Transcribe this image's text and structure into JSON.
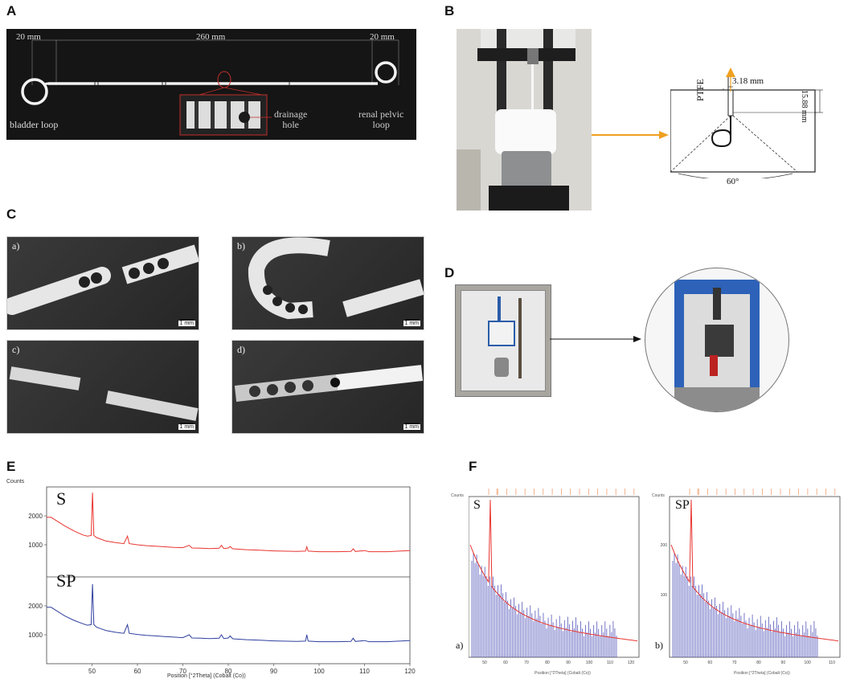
{
  "panels": {
    "a": "A",
    "b": "B",
    "c": "C",
    "d": "D",
    "e": "E",
    "f": "F"
  },
  "panel_a": {
    "dim_left": "20 mm",
    "dim_mid": "260 mm",
    "dim_right": "20 mm",
    "bladder_loop": "bladder loop",
    "drainage_hole_line1": "drainage",
    "drainage_hole_line2": "hole",
    "renal_line1": "renal pelvic",
    "renal_line2": "loop"
  },
  "panel_b": {
    "width_label": "3.18 mm",
    "height_label": "15.88 mm",
    "material": "PTFE",
    "angle": "60°"
  },
  "panel_c": {
    "labels": [
      "a)",
      "b)",
      "c)",
      "d)"
    ],
    "scale": "1 mm"
  },
  "chart_data": [
    {
      "type": "line",
      "ylabel": "Counts",
      "xlabel": "Position [°2Theta] (Cobalt (Co))",
      "x_ticks": [
        50,
        60,
        70,
        80,
        90,
        100,
        110,
        120
      ],
      "y_ticks": [
        1000,
        2000
      ],
      "xlim": [
        40,
        120
      ],
      "ylim": [
        0,
        3000
      ],
      "series": [
        {
          "name": "S",
          "color": "#e8342f",
          "points": [
            [
              40,
              1950
            ],
            [
              41,
              1950
            ],
            [
              42,
              1850
            ],
            [
              44,
              1650
            ],
            [
              46,
              1480
            ],
            [
              48,
              1340
            ],
            [
              49,
              1300
            ],
            [
              49.8,
              1320
            ],
            [
              50.1,
              2800
            ],
            [
              50.4,
              1320
            ],
            [
              51,
              1250
            ],
            [
              53,
              1130
            ],
            [
              55,
              1080
            ],
            [
              57,
              1040
            ],
            [
              57.8,
              1300
            ],
            [
              58.2,
              1040
            ],
            [
              60,
              1000
            ],
            [
              62,
              970
            ],
            [
              64,
              950
            ],
            [
              66,
              930
            ],
            [
              68,
              910
            ],
            [
              70,
              900
            ],
            [
              71.4,
              980
            ],
            [
              72,
              890
            ],
            [
              74,
              880
            ],
            [
              76,
              870
            ],
            [
              78,
              880
            ],
            [
              78.5,
              980
            ],
            [
              79,
              870
            ],
            [
              80,
              890
            ],
            [
              80.4,
              940
            ],
            [
              81,
              860
            ],
            [
              84,
              830
            ],
            [
              87,
              810
            ],
            [
              90,
              790
            ],
            [
              92,
              780
            ],
            [
              95,
              770
            ],
            [
              97,
              780
            ],
            [
              97.3,
              930
            ],
            [
              97.6,
              780
            ],
            [
              100,
              760
            ],
            [
              104,
              760
            ],
            [
              107,
              770
            ],
            [
              107.5,
              860
            ],
            [
              108,
              770
            ],
            [
              110,
              800
            ],
            [
              111,
              760
            ],
            [
              115,
              760
            ],
            [
              120,
              800
            ]
          ]
        },
        {
          "name": "SP",
          "color": "#2f3f9e",
          "points": [
            [
              40,
              1950
            ],
            [
              41,
              1950
            ],
            [
              42,
              1850
            ],
            [
              44,
              1650
            ],
            [
              46,
              1500
            ],
            [
              48,
              1380
            ],
            [
              49,
              1330
            ],
            [
              49.8,
              1350
            ],
            [
              50.1,
              2750
            ],
            [
              50.4,
              1350
            ],
            [
              51,
              1260
            ],
            [
              53,
              1150
            ],
            [
              55,
              1090
            ],
            [
              57,
              1050
            ],
            [
              57.8,
              1350
            ],
            [
              58.2,
              1050
            ],
            [
              60,
              1010
            ],
            [
              62,
              980
            ],
            [
              64,
              960
            ],
            [
              66,
              940
            ],
            [
              68,
              920
            ],
            [
              70,
              900
            ],
            [
              71.4,
              1000
            ],
            [
              72,
              890
            ],
            [
              74,
              880
            ],
            [
              76,
              870
            ],
            [
              78,
              880
            ],
            [
              78.5,
              1000
            ],
            [
              79,
              870
            ],
            [
              80,
              890
            ],
            [
              80.4,
              960
            ],
            [
              81,
              860
            ],
            [
              84,
              830
            ],
            [
              87,
              810
            ],
            [
              90,
              790
            ],
            [
              92,
              780
            ],
            [
              95,
              770
            ],
            [
              97,
              780
            ],
            [
              97.3,
              1000
            ],
            [
              97.6,
              780
            ],
            [
              100,
              760
            ],
            [
              104,
              760
            ],
            [
              107,
              770
            ],
            [
              107.5,
              880
            ],
            [
              108,
              770
            ],
            [
              110,
              800
            ],
            [
              111,
              760
            ],
            [
              115,
              760
            ],
            [
              120,
              800
            ]
          ]
        }
      ]
    }
  ],
  "panel_f": {
    "left_label": "S",
    "right_label": "SP",
    "left_sub": "a)",
    "right_sub": "b)",
    "ylabel": "Counts",
    "y_ticks": [
      "200",
      "100"
    ],
    "x_ticks_left": [
      "50",
      "60",
      "70",
      "80",
      "90",
      "100",
      "110",
      "120"
    ],
    "x_ticks_right": [
      "50",
      "60",
      "70",
      "80",
      "90",
      "100",
      "110"
    ],
    "xlabel": "Position [°2Theta] (Cobalt (Co))"
  }
}
